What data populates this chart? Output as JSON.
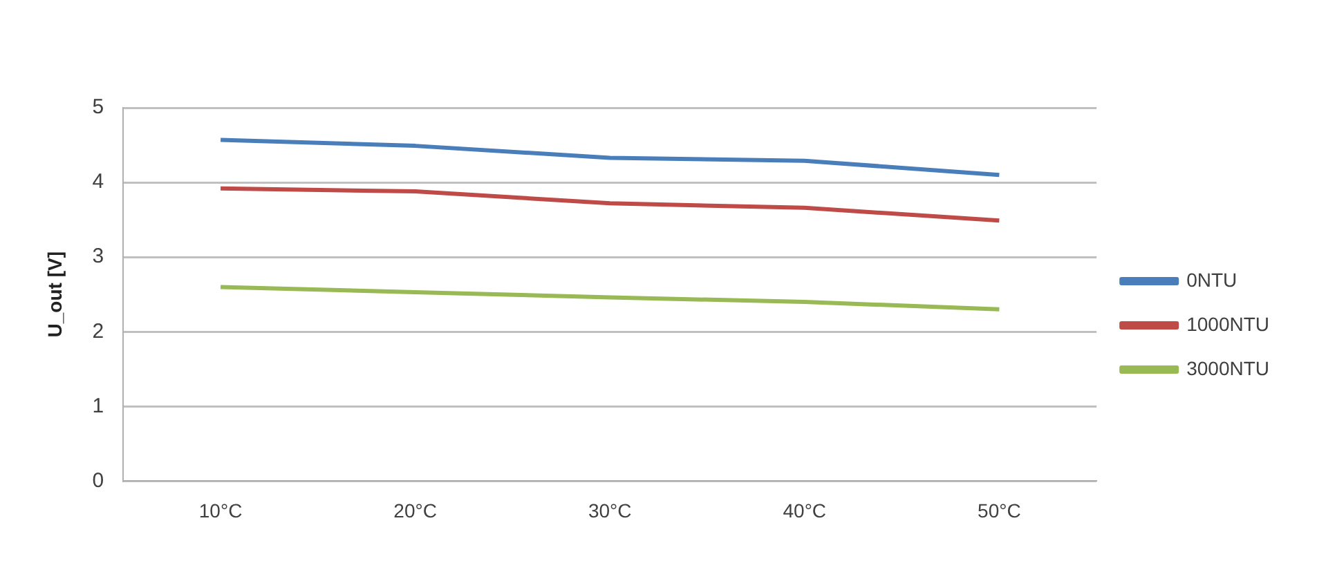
{
  "chart_data": {
    "type": "line",
    "ylabel": "U_out [V]",
    "categories": [
      "10°C",
      "20°C",
      "30°C",
      "40°C",
      "50°C"
    ],
    "series": [
      {
        "name": "0NTU",
        "color": "#4a7ebb",
        "values": [
          4.57,
          4.49,
          4.33,
          4.29,
          4.1
        ]
      },
      {
        "name": "1000NTU",
        "color": "#be4b48",
        "values": [
          3.92,
          3.88,
          3.72,
          3.66,
          3.49
        ]
      },
      {
        "name": "3000NTU",
        "color": "#98b954",
        "values": [
          2.6,
          2.53,
          2.46,
          2.4,
          2.3
        ]
      }
    ],
    "ylim": [
      0,
      5
    ],
    "yticks": [
      0,
      1,
      2,
      3,
      4,
      5
    ],
    "grid": "y",
    "legend": "right",
    "marker": "none",
    "line_style": "solid"
  }
}
